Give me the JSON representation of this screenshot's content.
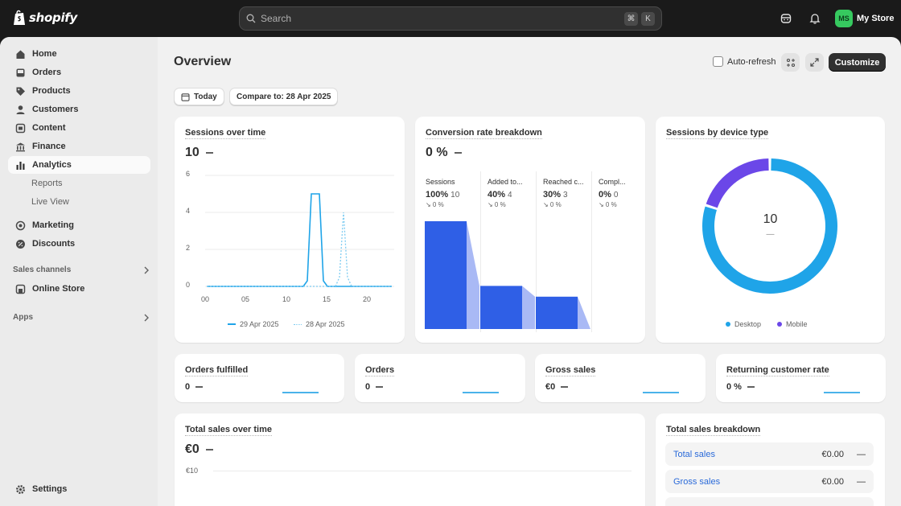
{
  "brand": {
    "name": "shopify"
  },
  "search": {
    "placeholder": "Search",
    "shortcut": [
      "⌘",
      "K"
    ]
  },
  "store": {
    "initials": "MS",
    "name": "My Store",
    "avatar_color": "#36c95f"
  },
  "sidebar": {
    "items": [
      {
        "label": "Home",
        "icon": "home-icon"
      },
      {
        "label": "Orders",
        "icon": "inbox-icon"
      },
      {
        "label": "Products",
        "icon": "tag-icon"
      },
      {
        "label": "Customers",
        "icon": "person-icon"
      },
      {
        "label": "Content",
        "icon": "content-icon"
      },
      {
        "label": "Finance",
        "icon": "bank-icon"
      },
      {
        "label": "Analytics",
        "icon": "bar-chart-icon",
        "active": true
      }
    ],
    "analytics_sub": [
      "Reports",
      "Live View"
    ],
    "items2": [
      {
        "label": "Marketing",
        "icon": "target-icon"
      },
      {
        "label": "Discounts",
        "icon": "discount-icon"
      }
    ],
    "sales_channels_label": "Sales channels",
    "online_store_label": "Online Store",
    "apps_label": "Apps",
    "settings_label": "Settings"
  },
  "page": {
    "title": "Overview",
    "auto_refresh_label": "Auto-refresh",
    "customize_label": "Customize",
    "date_filter": "Today",
    "compare_filter": "Compare to: 28 Apr 2025"
  },
  "cards": {
    "sessions": {
      "title": "Sessions over time",
      "value": "10",
      "chart_data": {
        "type": "line",
        "x_ticks": [
          "00",
          "05",
          "10",
          "15",
          "20"
        ],
        "y_ticks": [
          "6",
          "4",
          "2",
          "0"
        ],
        "ylim": [
          0,
          6
        ],
        "xlim": [
          0,
          23
        ],
        "series": [
          {
            "name": "29 Apr 2025",
            "style": "solid",
            "color": "#1fa4e8",
            "x": [
              0,
              12,
              12.5,
              13,
              14,
              14.5,
              15,
              23
            ],
            "y": [
              0,
              0,
              0.3,
              5,
              5,
              0.3,
              0,
              0
            ]
          },
          {
            "name": "28 Apr 2025",
            "style": "dotted",
            "color": "#7ccbf1",
            "x": [
              0,
              16,
              16.5,
              17,
              17.5,
              18,
              23
            ],
            "y": [
              0,
              0,
              0.5,
              4,
              0.5,
              0,
              0
            ]
          }
        ]
      }
    },
    "conversion": {
      "title": "Conversion rate breakdown",
      "value": "0 %",
      "steps": [
        {
          "label": "Sessions",
          "pct": "100%",
          "count": "10",
          "change": "↘ 0 %"
        },
        {
          "label": "Added to...",
          "pct": "40%",
          "count": "4",
          "change": "↘ 0 %"
        },
        {
          "label": "Reached c...",
          "pct": "30%",
          "count": "3",
          "change": "↘ 0 %"
        },
        {
          "label": "Compl...",
          "pct": "0%",
          "count": "0",
          "change": "↘ 0 %"
        }
      ],
      "chart_data": {
        "type": "bar",
        "categories": [
          "Sessions",
          "Added to cart",
          "Reached checkout",
          "Completed"
        ],
        "values": [
          100,
          40,
          30,
          0
        ],
        "color": "#2f5fe6"
      }
    },
    "devices": {
      "title": "Sessions by device type",
      "center_value": "10",
      "center_sub": "—",
      "chart_data": {
        "type": "pie",
        "labels": [
          "Desktop",
          "Mobile"
        ],
        "values": [
          8,
          2
        ],
        "colors": [
          "#1fa4e8",
          "#6b47e8"
        ]
      }
    },
    "orders_fulfilled": {
      "title": "Orders fulfilled",
      "value": "0"
    },
    "orders": {
      "title": "Orders",
      "value": "0"
    },
    "gross_sales": {
      "title": "Gross sales",
      "value": "€0"
    },
    "returning": {
      "title": "Returning customer rate",
      "value": "0 %"
    },
    "total_sales": {
      "title": "Total sales over time",
      "value": "€0",
      "y_tick": "€10"
    },
    "breakdown": {
      "title": "Total sales breakdown",
      "rows": [
        {
          "label": "Total sales",
          "amount": "€0.00",
          "change": "—"
        },
        {
          "label": "Gross sales",
          "amount": "€0.00",
          "change": "—"
        }
      ]
    }
  },
  "colors": {
    "accent_blue": "#1fa4e8",
    "purple": "#6b47e8",
    "funnel_blue": "#2f5fe6",
    "link": "#2a6ad9"
  }
}
